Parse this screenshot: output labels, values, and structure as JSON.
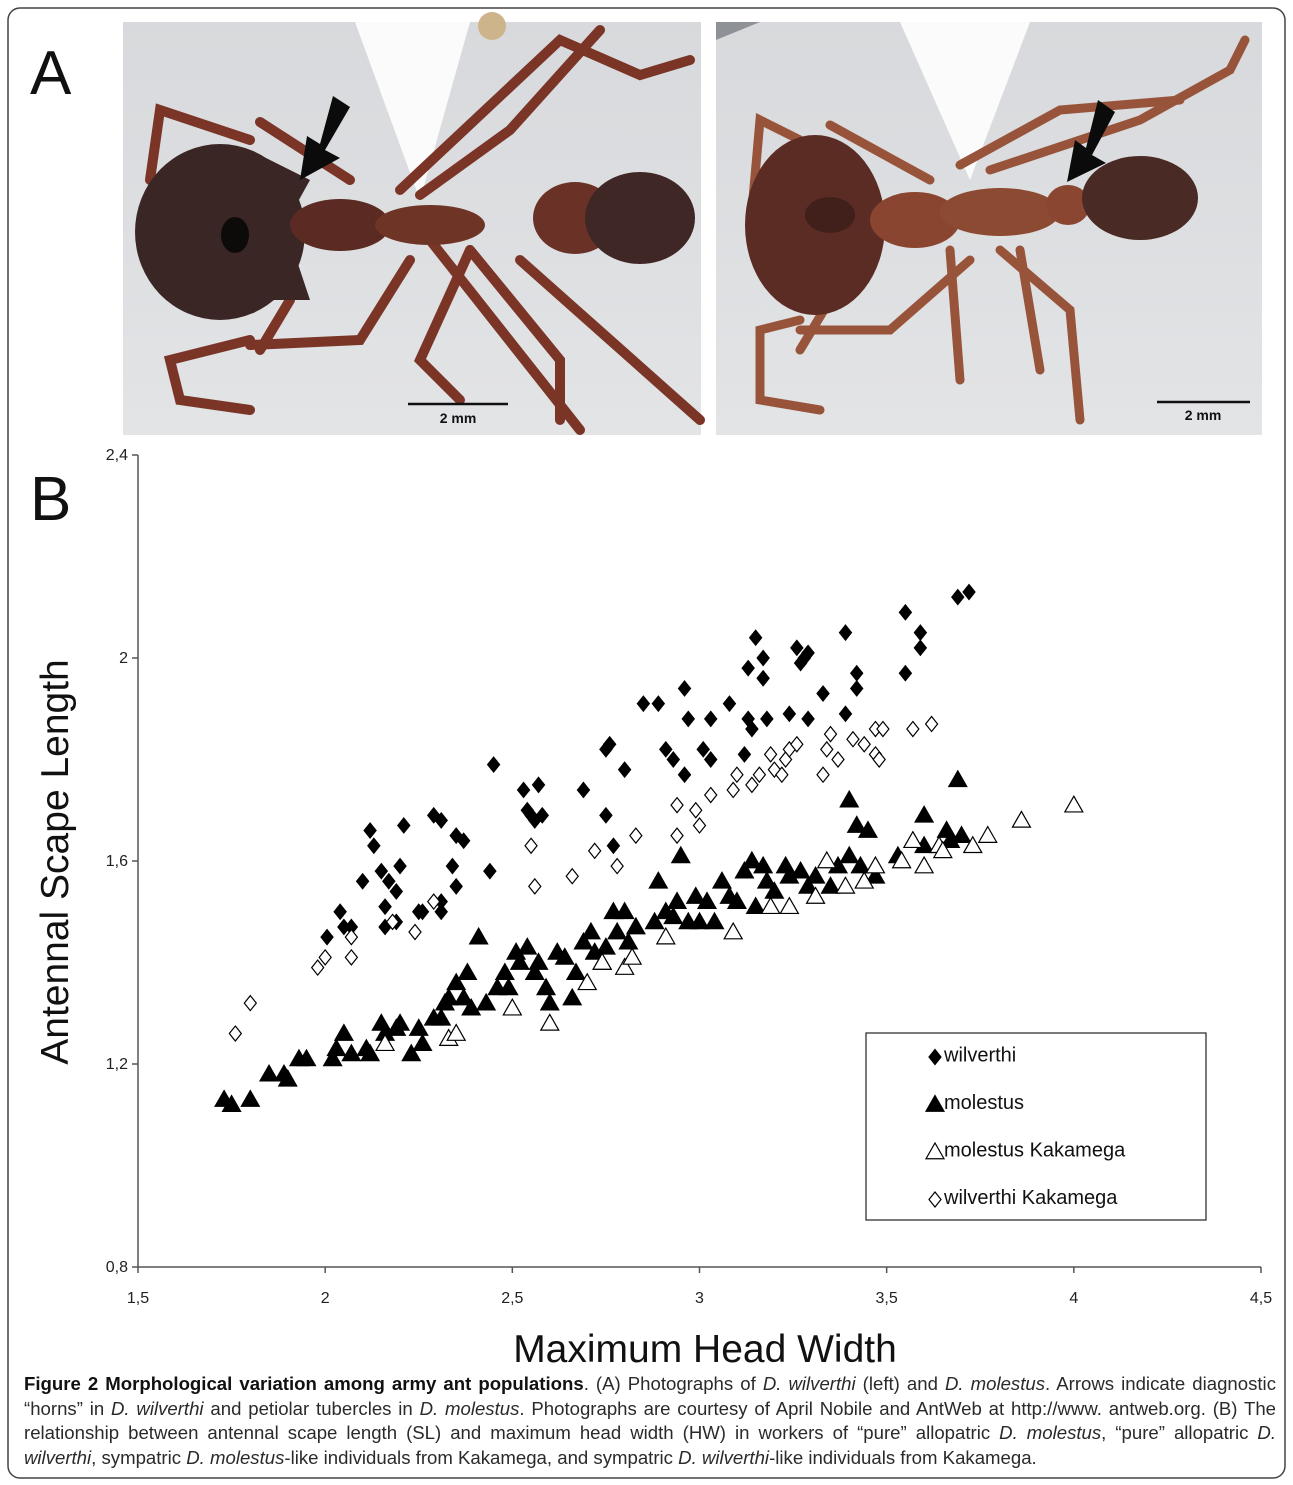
{
  "panel_labels": [
    "A",
    "B"
  ],
  "scale_bars": [
    "2 mm",
    "2 mm"
  ],
  "chart_data": {
    "type": "scatter",
    "xlabel": "Maximum Head Width",
    "ylabel": "Antennal Scape Length",
    "xlim": [
      1.5,
      4.5
    ],
    "ylim": [
      0.8,
      2.4
    ],
    "xticks": [
      {
        "value": 1.5,
        "label": "1,5"
      },
      2,
      {
        "value": 2.5,
        "label": "2,5"
      },
      3,
      {
        "value": 3.5,
        "label": "3,5"
      },
      4,
      {
        "value": 4.5,
        "label": "4,5"
      }
    ],
    "yticks": [
      {
        "value": 0.8,
        "label": "0,8"
      },
      {
        "value": 1.2,
        "label": "1,2"
      },
      {
        "value": 1.6,
        "label": "1,6"
      },
      2,
      {
        "value": 2.4,
        "label": "2,4"
      }
    ],
    "legend": "lower right",
    "grid": false,
    "series": [
      {
        "name": "wilverthi",
        "color": "#000000",
        "marker": "diamond",
        "filled": true,
        "x": [
          2.005,
          2.04,
          2.05,
          2.07,
          2.1,
          2.12,
          2.13,
          2.15,
          2.16,
          2.17,
          2.19,
          2.2,
          2.21,
          2.19,
          2.16,
          2.25,
          2.26,
          2.29,
          2.31,
          2.31,
          2.31,
          2.34,
          2.35,
          2.37,
          2.35,
          2.44,
          2.45,
          2.53,
          2.54,
          2.55,
          2.56,
          2.58,
          2.57,
          2.69,
          2.75,
          2.76,
          2.75,
          2.77,
          2.8,
          2.85,
          2.89,
          2.91,
          2.96,
          2.93,
          2.96,
          2.97,
          3.01,
          3.03,
          3.03,
          3.08,
          3.12,
          3.13,
          3.13,
          3.14,
          3.15,
          3.17,
          3.17,
          3.18,
          3.24,
          3.26,
          3.27,
          3.28,
          3.29,
          3.29,
          3.33,
          3.39,
          3.42,
          3.42,
          3.39,
          3.55,
          3.55,
          3.59,
          3.59,
          3.69,
          3.72
        ],
        "y": [
          1.45,
          1.5,
          1.47,
          1.47,
          1.56,
          1.66,
          1.63,
          1.58,
          1.51,
          1.56,
          1.54,
          1.59,
          1.67,
          1.48,
          1.47,
          1.5,
          1.5,
          1.69,
          1.68,
          1.52,
          1.5,
          1.59,
          1.65,
          1.64,
          1.55,
          1.58,
          1.79,
          1.74,
          1.7,
          1.69,
          1.68,
          1.69,
          1.75,
          1.74,
          1.82,
          1.83,
          1.69,
          1.63,
          1.78,
          1.91,
          1.91,
          1.82,
          1.94,
          1.8,
          1.77,
          1.88,
          1.82,
          1.88,
          1.8,
          1.91,
          1.81,
          1.98,
          1.88,
          1.86,
          2.04,
          2.0,
          1.96,
          1.88,
          1.89,
          2.02,
          1.99,
          2.0,
          2.01,
          1.88,
          1.93,
          2.05,
          1.97,
          1.94,
          1.89,
          2.09,
          1.97,
          2.05,
          2.02,
          2.12,
          2.13
        ]
      },
      {
        "name": "molestus",
        "color": "#000000",
        "marker": "triangle",
        "filled": true,
        "x": [
          1.73,
          1.75,
          1.8,
          1.85,
          1.89,
          1.9,
          1.93,
          1.95,
          2.02,
          2.03,
          2.05,
          2.07,
          2.11,
          2.12,
          2.15,
          2.16,
          2.19,
          2.2,
          2.23,
          2.25,
          2.26,
          2.29,
          2.31,
          2.32,
          2.33,
          2.35,
          2.37,
          2.38,
          2.39,
          2.41,
          2.43,
          2.46,
          2.48,
          2.49,
          2.51,
          2.52,
          2.54,
          2.56,
          2.57,
          2.59,
          2.6,
          2.62,
          2.64,
          2.66,
          2.67,
          2.69,
          2.71,
          2.72,
          2.74,
          2.75,
          2.77,
          2.78,
          2.8,
          2.81,
          2.83,
          2.88,
          2.89,
          2.91,
          2.93,
          2.94,
          2.95,
          2.97,
          2.99,
          3.0,
          3.02,
          3.04,
          3.06,
          3.08,
          3.1,
          3.12,
          3.14,
          3.15,
          3.17,
          3.18,
          3.2,
          3.23,
          3.24,
          3.27,
          3.29,
          3.31,
          3.35,
          3.37,
          3.4,
          3.4,
          3.42,
          3.43,
          3.45,
          3.47,
          3.53,
          3.6,
          3.6,
          3.66,
          3.67,
          3.69,
          3.7
        ],
        "y": [
          1.13,
          1.12,
          1.13,
          1.18,
          1.18,
          1.17,
          1.21,
          1.21,
          1.21,
          1.23,
          1.26,
          1.22,
          1.23,
          1.22,
          1.28,
          1.26,
          1.27,
          1.28,
          1.22,
          1.27,
          1.24,
          1.29,
          1.29,
          1.32,
          1.33,
          1.36,
          1.33,
          1.38,
          1.31,
          1.45,
          1.32,
          1.35,
          1.38,
          1.35,
          1.42,
          1.4,
          1.43,
          1.38,
          1.4,
          1.35,
          1.32,
          1.42,
          1.41,
          1.33,
          1.38,
          1.44,
          1.46,
          1.42,
          1.4,
          1.43,
          1.5,
          1.46,
          1.5,
          1.44,
          1.47,
          1.48,
          1.56,
          1.5,
          1.49,
          1.52,
          1.61,
          1.48,
          1.53,
          1.48,
          1.52,
          1.48,
          1.56,
          1.53,
          1.52,
          1.58,
          1.6,
          1.51,
          1.59,
          1.56,
          1.54,
          1.59,
          1.57,
          1.58,
          1.55,
          1.57,
          1.55,
          1.59,
          1.61,
          1.72,
          1.67,
          1.59,
          1.66,
          1.57,
          1.61,
          1.63,
          1.69,
          1.66,
          1.64,
          1.76,
          1.65
        ]
      },
      {
        "name": "molestus Kakamega",
        "color": "#000000",
        "marker": "triangle",
        "filled": false,
        "x": [
          2.16,
          2.33,
          2.35,
          2.5,
          2.6,
          2.7,
          2.74,
          2.8,
          2.82,
          2.91,
          3.09,
          3.19,
          3.24,
          3.31,
          3.34,
          3.39,
          3.44,
          3.47,
          3.54,
          3.57,
          3.6,
          3.64,
          3.65,
          3.73,
          3.77,
          3.86,
          4.0
        ],
        "y": [
          1.24,
          1.25,
          1.26,
          1.31,
          1.28,
          1.36,
          1.4,
          1.39,
          1.41,
          1.45,
          1.46,
          1.51,
          1.51,
          1.53,
          1.6,
          1.55,
          1.56,
          1.59,
          1.6,
          1.64,
          1.59,
          1.63,
          1.62,
          1.63,
          1.65,
          1.68,
          1.71
        ]
      },
      {
        "name": "wilverthi Kakamega",
        "color": "#000000",
        "marker": "diamond",
        "filled": false,
        "x": [
          1.76,
          1.8,
          1.98,
          2.0,
          2.07,
          2.07,
          2.18,
          2.24,
          2.29,
          2.55,
          2.56,
          2.66,
          2.72,
          2.78,
          2.83,
          2.94,
          2.94,
          2.99,
          3.0,
          3.03,
          3.09,
          3.1,
          3.14,
          3.16,
          3.2,
          3.22,
          3.23,
          3.24,
          3.26,
          3.33,
          3.34,
          3.35,
          3.37,
          3.41,
          3.44,
          3.47,
          3.47,
          3.49,
          3.48,
          3.57,
          3.62,
          3.19
        ],
        "y": [
          1.26,
          1.32,
          1.39,
          1.41,
          1.41,
          1.45,
          1.48,
          1.46,
          1.52,
          1.63,
          1.55,
          1.57,
          1.62,
          1.59,
          1.65,
          1.65,
          1.71,
          1.7,
          1.67,
          1.73,
          1.74,
          1.77,
          1.75,
          1.77,
          1.78,
          1.77,
          1.8,
          1.82,
          1.83,
          1.77,
          1.82,
          1.85,
          1.8,
          1.84,
          1.83,
          1.86,
          1.81,
          1.86,
          1.8,
          1.86,
          1.87,
          1.81
        ]
      }
    ]
  },
  "caption": [
    {
      "text": "Figure 2 Morphological variation among army ant populations",
      "style": "bold"
    },
    {
      "text": ". (A) Photographs of "
    },
    {
      "text": "D. wilverthi",
      "style": "italic"
    },
    {
      "text": " (left) and "
    },
    {
      "text": "D. molestus",
      "style": "italic"
    },
    {
      "text": ". Arrows indicate diagnostic “horns” in "
    },
    {
      "text": "D. wilverthi",
      "style": "italic"
    },
    {
      "text": " and petiolar tubercles in "
    },
    {
      "text": "D. molestus",
      "style": "italic"
    },
    {
      "text": ". Photographs are courtesy of April Nobile and AntWeb at http://www. antweb.org. (B) The relationship between antennal scape length (SL) and maximum head width (HW) in workers of “pure” allopatric "
    },
    {
      "text": "D. molestus",
      "style": "italic"
    },
    {
      "text": ", “pure” allopatric "
    },
    {
      "text": "D. wilverthi",
      "style": "italic"
    },
    {
      "text": ", sympatric "
    },
    {
      "text": "D. molestus",
      "style": "italic"
    },
    {
      "text": "-like individuals from Kakamega, and sympatric "
    },
    {
      "text": "D. wilverthi",
      "style": "italic"
    },
    {
      "text": "-like individuals from Kakamega."
    }
  ]
}
